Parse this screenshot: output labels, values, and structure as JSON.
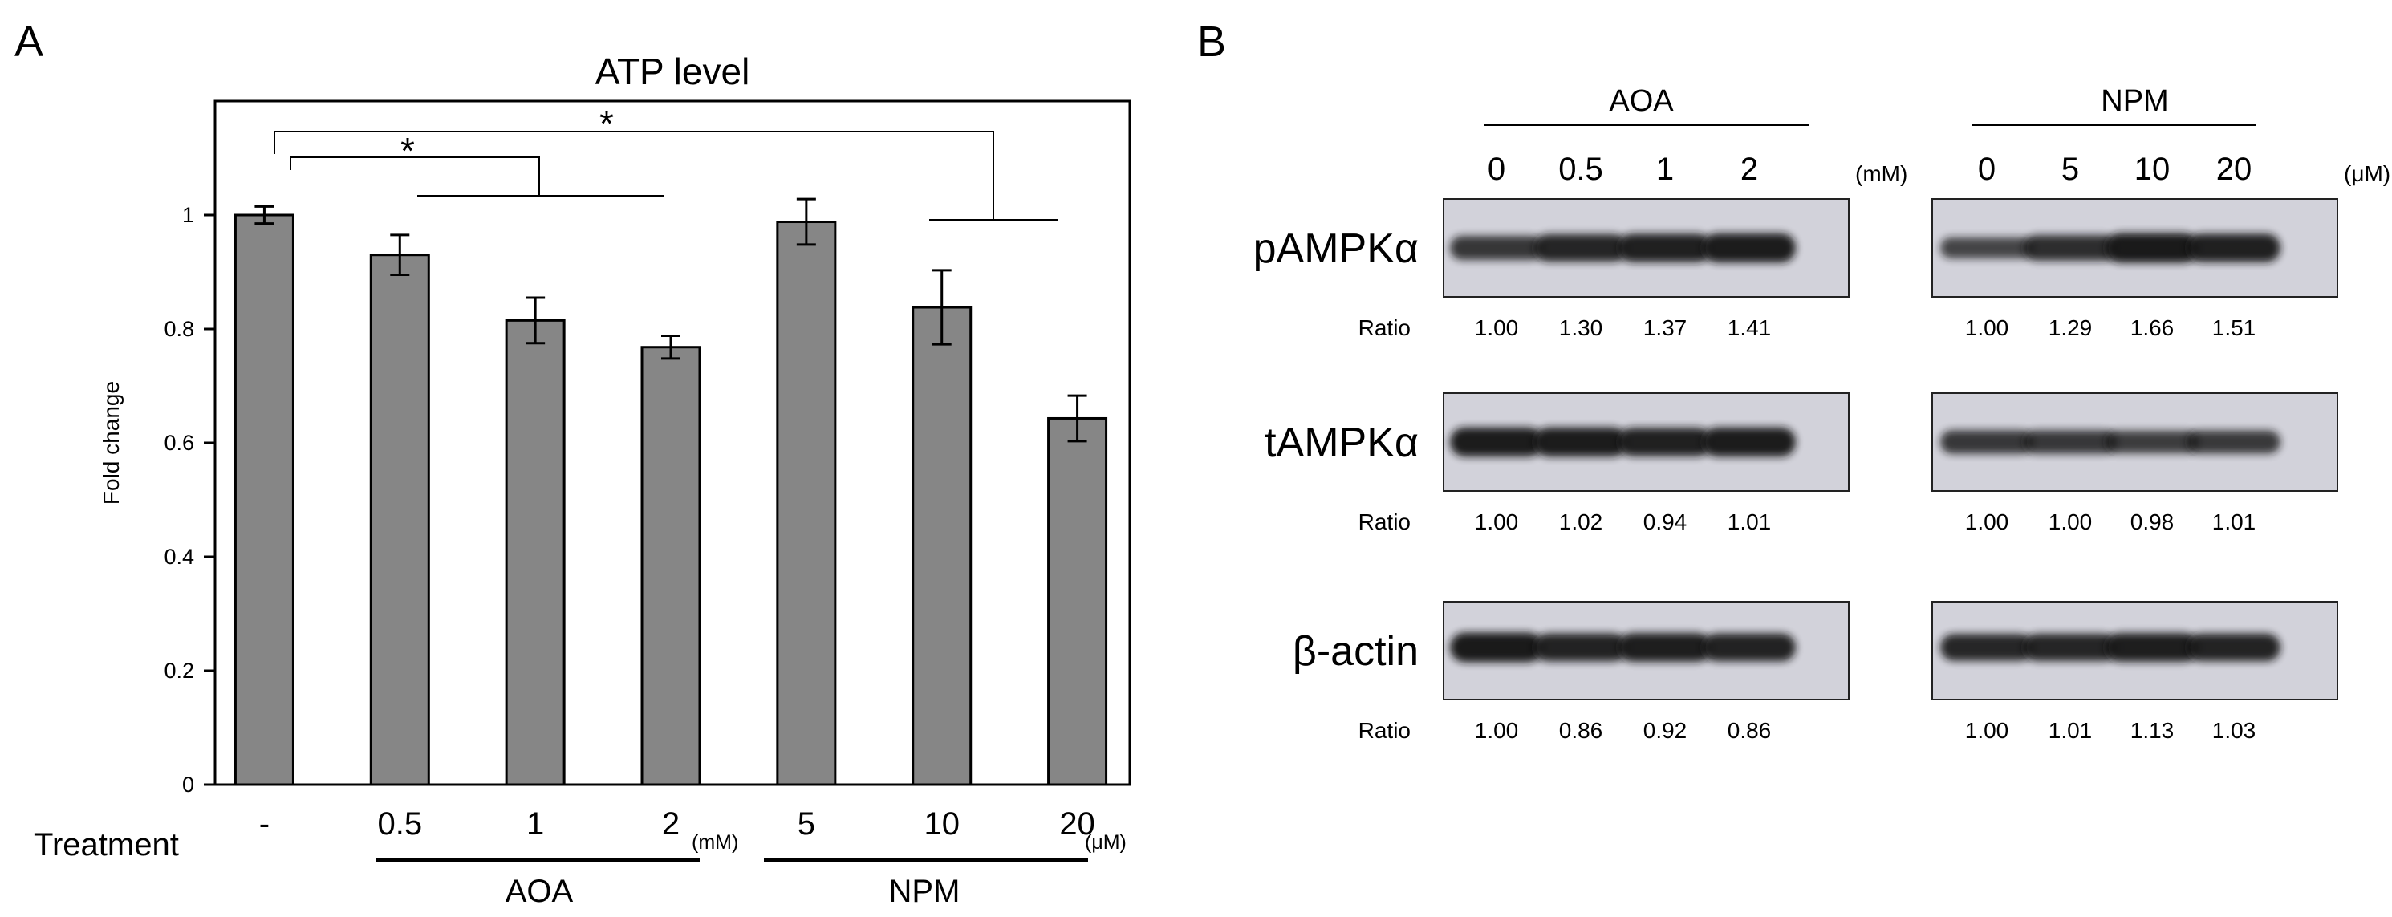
{
  "panels": {
    "a": "A",
    "b": "B"
  },
  "chart_data": {
    "type": "bar",
    "title": "ATP level",
    "ylabel": "Fold change",
    "xlabel": "Treatment",
    "ylim": [
      0,
      1.2
    ],
    "yticks": [
      "0",
      "0.2",
      "0.4",
      "0.6",
      "0.8",
      "1"
    ],
    "categories": [
      "-",
      "0.5",
      "1",
      "2",
      "5",
      "10",
      "20"
    ],
    "values": [
      1.0,
      0.93,
      0.815,
      0.768,
      0.988,
      0.838,
      0.643
    ],
    "errors": [
      0.015,
      0.035,
      0.04,
      0.02,
      0.04,
      0.065,
      0.04
    ],
    "bar_color": "#868686",
    "grid": false,
    "group_labels": {
      "aoa": "AOA",
      "npm": "NPM"
    },
    "units": {
      "mM": "(mM)",
      "uM": "(μM)"
    },
    "significance": [
      "*",
      "*"
    ]
  },
  "blot": {
    "groups": [
      {
        "name": "AOA",
        "unit": "(mM)",
        "lanes": [
          "0",
          "0.5",
          "1",
          "2"
        ]
      },
      {
        "name": "NPM",
        "unit": "(μM)",
        "lanes": [
          "0",
          "5",
          "10",
          "20"
        ]
      }
    ],
    "ratio_label": "Ratio",
    "rows": [
      {
        "label": "pAMPKα",
        "ratios": [
          [
            "1.00",
            "1.30",
            "1.37",
            "1.41"
          ],
          [
            "1.00",
            "1.29",
            "1.66",
            "1.51"
          ]
        ],
        "bands": [
          [
            0.62,
            0.82,
            0.88,
            0.92
          ],
          [
            0.45,
            0.72,
            0.95,
            0.88
          ]
        ]
      },
      {
        "label": "tAMPKα",
        "ratios": [
          [
            "1.00",
            "1.02",
            "0.94",
            "1.01"
          ],
          [
            "1.00",
            "1.00",
            "0.98",
            "1.01"
          ]
        ],
        "bands": [
          [
            0.92,
            0.92,
            0.88,
            0.92
          ],
          [
            0.6,
            0.6,
            0.55,
            0.58
          ]
        ]
      },
      {
        "label": "β-actin",
        "ratios": [
          [
            "1.00",
            "0.86",
            "0.92",
            "0.86"
          ],
          [
            "1.00",
            "1.01",
            "1.13",
            "1.03"
          ]
        ],
        "bands": [
          [
            0.95,
            0.85,
            0.9,
            0.85
          ],
          [
            0.8,
            0.82,
            0.9,
            0.84
          ]
        ]
      }
    ]
  }
}
